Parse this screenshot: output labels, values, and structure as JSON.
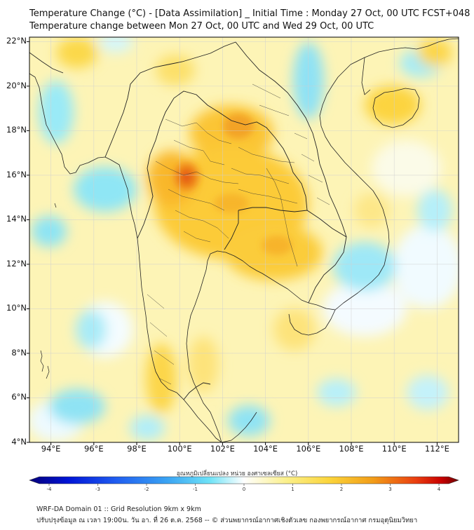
{
  "title": {
    "line1": "Temperature Change (°C) - [Data Assimilation] _ Initial Time : Monday 27 Oct, 00 UTC FCST+048",
    "line2": "Temperature change between Mon 27 Oct, 00 UTC and Wed 29 Oct, 00 UTC"
  },
  "axes": {
    "lat_labels": [
      "22°N",
      "20°N",
      "18°N",
      "16°N",
      "14°N",
      "12°N",
      "10°N",
      "8°N",
      "6°N",
      "4°N"
    ],
    "lon_labels": [
      "94°E",
      "96°E",
      "98°E",
      "100°E",
      "102°E",
      "104°E",
      "106°E",
      "108°E",
      "110°E",
      "112°E"
    ],
    "lat_range": [
      4,
      22.2
    ],
    "lon_range": [
      93,
      113
    ]
  },
  "colorbar": {
    "title": "อุณหภูมิเปลี่ยนแปลง หน่วย องศาเซลเซียส (°C)",
    "ticks": [
      "-4",
      "-3",
      "-2",
      "-1",
      "0",
      "1",
      "2",
      "3",
      "4"
    ],
    "range": [
      -4,
      4
    ],
    "colors": [
      "#05007a",
      "#0014d6",
      "#1f5cf0",
      "#3aa3f3",
      "#6fe3f7",
      "#ffffff",
      "#fbf08a",
      "#fbd43a",
      "#f29d18",
      "#ea3f10",
      "#c80000",
      "#6e0000"
    ]
  },
  "field_hotspots": [
    {
      "name": "hot-peak-tak",
      "lon": 100.2,
      "lat": 15.8,
      "value": 2.6
    },
    {
      "name": "warm-nan-laos",
      "lon": 102.1,
      "lat": 18.0,
      "value": 1.9
    },
    {
      "name": "warm-central",
      "lon": 101.5,
      "lat": 14.6,
      "value": 1.7
    },
    {
      "name": "warm-cambodia",
      "lon": 104.0,
      "lat": 12.5,
      "value": 1.6
    },
    {
      "name": "cool-andaman",
      "lon": 95.5,
      "lat": 15.0,
      "value": -1.2
    },
    {
      "name": "cool-gulf-tonkin",
      "lon": 107.6,
      "lat": 19.6,
      "value": -1.3
    },
    {
      "name": "cool-s-china-sea",
      "lon": 109.5,
      "lat": 12.0,
      "value": -1.0
    }
  ],
  "footer": {
    "line1": "WRF-DA Domain 01 :: Grid Resolution 9km x 9km",
    "line2": "ปรับปรุงข้อมูล ณ เวลา 19:00น. วัน อา. ที่ 26 ต.ค. 2568 -- © ส่วนพยากรณ์อากาศเชิงตัวเลข กองพยากรณ์อากาศ กรมอุตุนิยมวิทยา"
  }
}
